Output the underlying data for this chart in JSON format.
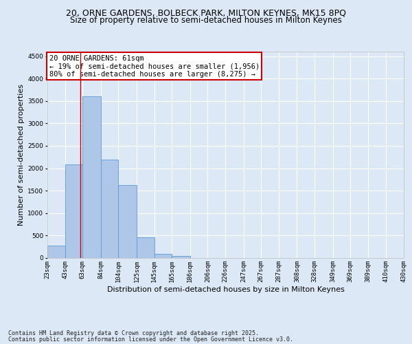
{
  "title1": "20, ORNE GARDENS, BOLBECK PARK, MILTON KEYNES, MK15 8PQ",
  "title2": "Size of property relative to semi-detached houses in Milton Keynes",
  "xlabel": "Distribution of semi-detached houses by size in Milton Keynes",
  "ylabel": "Number of semi-detached properties",
  "footer1": "Contains HM Land Registry data © Crown copyright and database right 2025.",
  "footer2": "Contains public sector information licensed under the Open Government Licence v3.0.",
  "annotation_title": "20 ORNE GARDENS: 61sqm",
  "annotation_line1": "← 19% of semi-detached houses are smaller (1,956)",
  "annotation_line2": "80% of semi-detached houses are larger (8,275) →",
  "property_size": 61,
  "bin_edges": [
    23,
    43,
    63,
    84,
    104,
    125,
    145,
    165,
    186,
    206,
    226,
    247,
    267,
    287,
    308,
    328,
    349,
    369,
    389,
    410,
    430
  ],
  "bin_labels": [
    "23sqm",
    "43sqm",
    "63sqm",
    "84sqm",
    "104sqm",
    "125sqm",
    "145sqm",
    "165sqm",
    "186sqm",
    "206sqm",
    "226sqm",
    "247sqm",
    "267sqm",
    "287sqm",
    "308sqm",
    "328sqm",
    "349sqm",
    "369sqm",
    "389sqm",
    "410sqm",
    "430sqm"
  ],
  "bar_heights": [
    280,
    2090,
    3610,
    2200,
    1630,
    460,
    95,
    50,
    0,
    0,
    0,
    0,
    0,
    0,
    0,
    0,
    0,
    0,
    0,
    0
  ],
  "bar_color": "#aec6e8",
  "bar_edge_color": "#5b9bd5",
  "vline_color": "#cc0000",
  "vline_x": 61,
  "ylim": [
    0,
    4600
  ],
  "background_color": "#dce8f5",
  "axes_bg_color": "#dce8f5",
  "grid_color": "#ffffff",
  "annotation_box_color": "#ffffff",
  "annotation_box_edge": "#cc0000",
  "title_fontsize": 9,
  "subtitle_fontsize": 8.5,
  "tick_fontsize": 6.5,
  "ylabel_fontsize": 8,
  "xlabel_fontsize": 8,
  "annotation_fontsize": 7.5,
  "footer_fontsize": 6
}
